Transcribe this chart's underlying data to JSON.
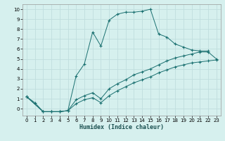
{
  "xlabel": "Humidex (Indice chaleur)",
  "xlim": [
    -0.5,
    23.5
  ],
  "ylim": [
    -0.7,
    10.5
  ],
  "xticks": [
    0,
    1,
    2,
    3,
    4,
    5,
    6,
    7,
    8,
    9,
    10,
    11,
    12,
    13,
    14,
    15,
    16,
    17,
    18,
    19,
    20,
    21,
    22,
    23
  ],
  "yticks": [
    0,
    1,
    2,
    3,
    4,
    5,
    6,
    7,
    8,
    9,
    10
  ],
  "bg_color": "#d6f0ee",
  "grid_color": "#c0dede",
  "line_color": "#1a7070",
  "line1_x": [
    0,
    1,
    2,
    3,
    4,
    5,
    6,
    7,
    8,
    9,
    10,
    11,
    12,
    13,
    14,
    15,
    16,
    17,
    18,
    19,
    20,
    21,
    22
  ],
  "line1_y": [
    1.2,
    0.6,
    -0.3,
    -0.3,
    -0.3,
    -0.2,
    3.3,
    4.5,
    7.7,
    6.3,
    8.9,
    9.5,
    9.7,
    9.7,
    9.8,
    10.0,
    7.5,
    7.2,
    6.5,
    6.2,
    5.9,
    5.8,
    5.8
  ],
  "line2_x": [
    0,
    2,
    3,
    4,
    5,
    6,
    7,
    8,
    9,
    10,
    11,
    12,
    13,
    14,
    15,
    16,
    17,
    18,
    19,
    20,
    21,
    22,
    23
  ],
  "line2_y": [
    1.2,
    -0.3,
    -0.3,
    -0.3,
    -0.2,
    0.9,
    1.3,
    1.6,
    1.0,
    2.0,
    2.5,
    2.9,
    3.4,
    3.7,
    4.0,
    4.4,
    4.8,
    5.1,
    5.3,
    5.5,
    5.7,
    5.7,
    5.0
  ],
  "line3_x": [
    0,
    2,
    3,
    4,
    5,
    6,
    7,
    8,
    9,
    10,
    11,
    12,
    13,
    14,
    15,
    16,
    17,
    18,
    19,
    20,
    21,
    22,
    23
  ],
  "line3_y": [
    1.2,
    -0.3,
    -0.3,
    -0.3,
    -0.2,
    0.5,
    0.9,
    1.1,
    0.6,
    1.3,
    1.8,
    2.2,
    2.6,
    2.9,
    3.2,
    3.6,
    3.9,
    4.2,
    4.4,
    4.6,
    4.7,
    4.8,
    4.9
  ]
}
